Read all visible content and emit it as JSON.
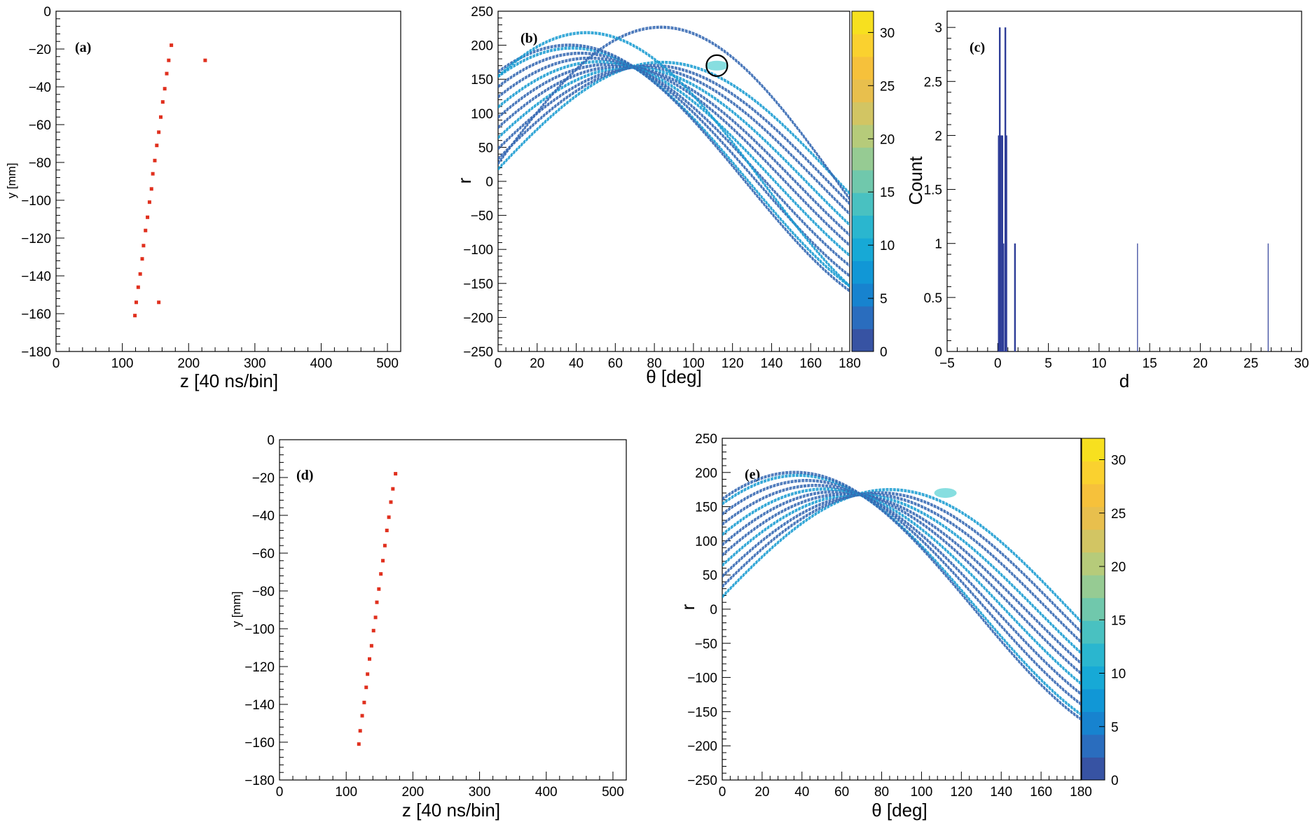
{
  "chart_data": [
    {
      "panel": "a",
      "label": "(a)",
      "type": "scatter",
      "xlabel": "z [40 ns/bin]",
      "ylabel": "y [mm]",
      "xlim": [
        0,
        520
      ],
      "ylim": [
        -180,
        0
      ],
      "xticks": [
        0,
        100,
        200,
        300,
        400,
        500
      ],
      "yticks": [
        0,
        -20,
        -40,
        -60,
        -80,
        -100,
        -120,
        -140,
        -160,
        -180
      ],
      "marker_color": "#e0301e",
      "points": [
        {
          "x": 174,
          "y": -18
        },
        {
          "x": 170,
          "y": -26
        },
        {
          "x": 167,
          "y": -33
        },
        {
          "x": 164,
          "y": -41
        },
        {
          "x": 161,
          "y": -48
        },
        {
          "x": 158,
          "y": -56
        },
        {
          "x": 155,
          "y": -64
        },
        {
          "x": 152,
          "y": -71
        },
        {
          "x": 149,
          "y": -79
        },
        {
          "x": 146,
          "y": -86
        },
        {
          "x": 144,
          "y": -94
        },
        {
          "x": 141,
          "y": -101
        },
        {
          "x": 138,
          "y": -109
        },
        {
          "x": 135,
          "y": -116
        },
        {
          "x": 132,
          "y": -124
        },
        {
          "x": 130,
          "y": -131
        },
        {
          "x": 127,
          "y": -139
        },
        {
          "x": 124,
          "y": -146
        },
        {
          "x": 121,
          "y": -154
        },
        {
          "x": 119,
          "y": -161
        },
        {
          "x": 225,
          "y": -26
        },
        {
          "x": 155,
          "y": -154
        }
      ]
    },
    {
      "panel": "b",
      "label": "(b)",
      "type": "heatmap",
      "xlabel": "θ [deg]",
      "ylabel": "r",
      "xlim": [
        0,
        180
      ],
      "ylim": [
        -250,
        250
      ],
      "xticks": [
        0,
        20,
        40,
        60,
        80,
        100,
        120,
        140,
        160,
        180
      ],
      "yticks": [
        250,
        200,
        150,
        100,
        50,
        0,
        -50,
        -100,
        -150,
        -200,
        -250
      ],
      "colorbar": {
        "min": 0,
        "max": 32,
        "ticks": [
          0,
          5,
          10,
          15,
          20,
          25,
          30
        ]
      },
      "peak": {
        "theta": 112,
        "r": 170
      },
      "curves": [
        {
          "z": 174,
          "y": -18
        },
        {
          "z": 167,
          "y": -33
        },
        {
          "z": 161,
          "y": -48
        },
        {
          "z": 155,
          "y": -64
        },
        {
          "z": 149,
          "y": -79
        },
        {
          "z": 144,
          "y": -94
        },
        {
          "z": 138,
          "y": -109
        },
        {
          "z": 132,
          "y": -124
        },
        {
          "z": 127,
          "y": -139
        },
        {
          "z": 121,
          "y": -154
        },
        {
          "z": 119,
          "y": -161
        },
        {
          "z": 225,
          "y": -26
        },
        {
          "z": 155,
          "y": -154
        }
      ]
    },
    {
      "panel": "c",
      "label": "(c)",
      "type": "bar",
      "xlabel": "d",
      "ylabel": "Count",
      "xlim": [
        -5,
        30
      ],
      "ylim": [
        0,
        3.15
      ],
      "xticks": [
        -5,
        0,
        5,
        10,
        15,
        20,
        25,
        30
      ],
      "yticks": [
        0,
        0.5,
        1,
        1.5,
        2,
        2.5,
        3
      ],
      "bars": [
        {
          "x": 0.1,
          "value": 2
        },
        {
          "x": 0.2,
          "value": 3
        },
        {
          "x": 0.3,
          "value": 2
        },
        {
          "x": 0.45,
          "value": 2
        },
        {
          "x": 0.55,
          "value": 1
        },
        {
          "x": 0.75,
          "value": 3
        },
        {
          "x": 0.85,
          "value": 2
        },
        {
          "x": 1.7,
          "value": 1
        },
        {
          "x": 13.8,
          "value": 1
        },
        {
          "x": 26.7,
          "value": 1
        }
      ]
    },
    {
      "panel": "d",
      "label": "(d)",
      "type": "scatter",
      "xlabel": "z [40 ns/bin]",
      "ylabel": "y [mm]",
      "xlim": [
        0,
        520
      ],
      "ylim": [
        -180,
        0
      ],
      "xticks": [
        0,
        100,
        200,
        300,
        400,
        500
      ],
      "yticks": [
        0,
        -20,
        -40,
        -60,
        -80,
        -100,
        -120,
        -140,
        -160,
        -180
      ],
      "marker_color": "#e0301e",
      "points": [
        {
          "x": 174,
          "y": -18
        },
        {
          "x": 170,
          "y": -26
        },
        {
          "x": 167,
          "y": -33
        },
        {
          "x": 164,
          "y": -41
        },
        {
          "x": 161,
          "y": -48
        },
        {
          "x": 158,
          "y": -56
        },
        {
          "x": 155,
          "y": -64
        },
        {
          "x": 152,
          "y": -71
        },
        {
          "x": 149,
          "y": -79
        },
        {
          "x": 146,
          "y": -86
        },
        {
          "x": 144,
          "y": -94
        },
        {
          "x": 141,
          "y": -101
        },
        {
          "x": 138,
          "y": -109
        },
        {
          "x": 135,
          "y": -116
        },
        {
          "x": 132,
          "y": -124
        },
        {
          "x": 130,
          "y": -131
        },
        {
          "x": 127,
          "y": -139
        },
        {
          "x": 124,
          "y": -146
        },
        {
          "x": 121,
          "y": -154
        },
        {
          "x": 119,
          "y": -161
        }
      ]
    },
    {
      "panel": "e",
      "label": "(e)",
      "type": "heatmap",
      "xlabel": "θ [deg]",
      "ylabel": "r",
      "xlim": [
        0,
        180
      ],
      "ylim": [
        -250,
        250
      ],
      "xticks": [
        0,
        20,
        40,
        60,
        80,
        100,
        120,
        140,
        160,
        180
      ],
      "yticks": [
        250,
        200,
        150,
        100,
        50,
        0,
        -50,
        -100,
        -150,
        -200,
        -250
      ],
      "colorbar": {
        "min": 0,
        "max": 32,
        "ticks": [
          0,
          5,
          10,
          15,
          20,
          25,
          30
        ]
      },
      "peak": {
        "theta": 112,
        "r": 170
      },
      "curves": [
        {
          "z": 174,
          "y": -18
        },
        {
          "z": 167,
          "y": -33
        },
        {
          "z": 161,
          "y": -48
        },
        {
          "z": 155,
          "y": -64
        },
        {
          "z": 149,
          "y": -79
        },
        {
          "z": 144,
          "y": -94
        },
        {
          "z": 138,
          "y": -109
        },
        {
          "z": 132,
          "y": -124
        },
        {
          "z": 127,
          "y": -139
        },
        {
          "z": 121,
          "y": -154
        },
        {
          "z": 119,
          "y": -161
        }
      ]
    }
  ],
  "colors": {
    "curve": "#3568b3",
    "curve_bright": "#1b9cd2",
    "peak_glow": "#5fd3d6",
    "bar": "#2e3d98",
    "frame": "#000000"
  },
  "palette": [
    "#3753a3",
    "#2a6dbe",
    "#1783cf",
    "#1197d6",
    "#17a9d6",
    "#2ab6cf",
    "#49c1c1",
    "#70c8ac",
    "#96cb93",
    "#b6cb7a",
    "#d2c563",
    "#e8bf4d",
    "#f6c13b",
    "#fad12f",
    "#f7e01f"
  ]
}
